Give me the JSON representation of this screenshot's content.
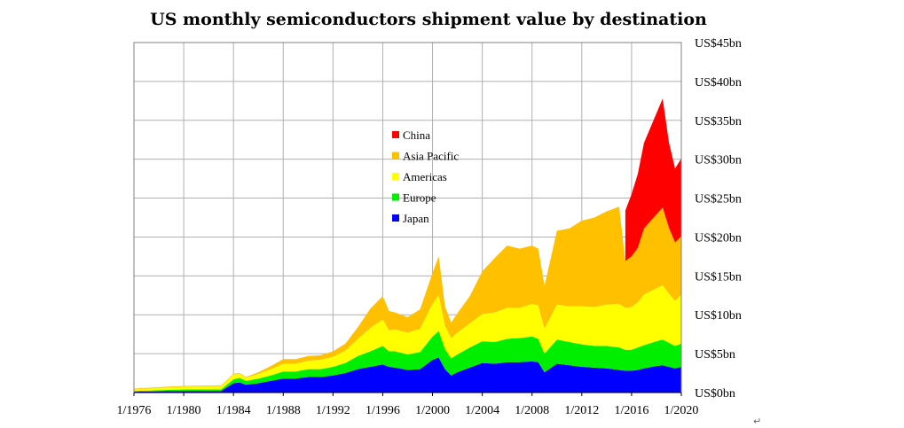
{
  "chart_data": {
    "type": "area",
    "stacked": true,
    "title": "US monthly semiconductors shipment value by destination",
    "xlabel": "",
    "ylabel": "",
    "x_range": [
      1976,
      2020
    ],
    "ylim": [
      0,
      45
    ],
    "x_ticks": [
      "1/1976",
      "1/1980",
      "1/1984",
      "1/1988",
      "1/1992",
      "1/1996",
      "1/2000",
      "1/2004",
      "1/2008",
      "1/2012",
      "1/2016",
      "1/2020"
    ],
    "y_ticks": [
      "US$0bn",
      "US$5bn",
      "US$10bn",
      "US$15bn",
      "US$20bn",
      "US$25bn",
      "US$30bn",
      "US$35bn",
      "US$40bn",
      "US$45bn"
    ],
    "y_tick_values": [
      0,
      5,
      10,
      15,
      20,
      25,
      30,
      35,
      40,
      45
    ],
    "x_tick_values": [
      1976,
      1980,
      1984,
      1988,
      1992,
      1996,
      2000,
      2004,
      2008,
      2012,
      2016,
      2020
    ],
    "grid": true,
    "legend_position": "center",
    "x": [
      1976,
      1978,
      1980,
      1982,
      1983,
      1984,
      1984.5,
      1985,
      1986,
      1987,
      1988,
      1989,
      1990,
      1991,
      1992,
      1993,
      1994,
      1995,
      1996,
      1996.5,
      1997,
      1998,
      1999,
      2000,
      2000.5,
      2001,
      2001.5,
      2002,
      2003,
      2004,
      2005,
      2006,
      2007,
      2008,
      2008.5,
      2009,
      2010,
      2011,
      2012,
      2013,
      2014,
      2015,
      2015.5,
      2016,
      2016.5,
      2017,
      2018,
      2018.5,
      2019,
      2019.5,
      2020
    ],
    "series": [
      {
        "name": "Japan",
        "color": "#0000ff",
        "values": [
          0.1,
          0.15,
          0.2,
          0.2,
          0.2,
          1.2,
          1.3,
          1.0,
          1.2,
          1.5,
          1.8,
          1.8,
          2.0,
          2.0,
          2.2,
          2.5,
          3.0,
          3.3,
          3.6,
          3.3,
          3.2,
          2.9,
          3.0,
          4.2,
          4.5,
          3.0,
          2.2,
          2.6,
          3.2,
          3.8,
          3.7,
          3.9,
          3.9,
          4.0,
          3.9,
          2.6,
          3.7,
          3.5,
          3.3,
          3.2,
          3.1,
          2.9,
          2.8,
          2.8,
          2.9,
          3.1,
          3.4,
          3.5,
          3.3,
          3.1,
          3.3
        ]
      },
      {
        "name": "Europe",
        "color": "#00ee00",
        "values": [
          0.1,
          0.15,
          0.2,
          0.2,
          0.2,
          0.5,
          0.6,
          0.5,
          0.6,
          0.7,
          0.9,
          0.9,
          1.0,
          1.0,
          1.1,
          1.3,
          1.7,
          2.0,
          2.4,
          2.0,
          2.1,
          2.0,
          2.2,
          3.0,
          3.4,
          2.6,
          2.2,
          2.3,
          2.6,
          2.8,
          2.8,
          3.0,
          3.1,
          3.2,
          3.0,
          2.4,
          3.1,
          3.0,
          2.9,
          2.8,
          2.9,
          2.9,
          2.7,
          2.7,
          2.9,
          3.0,
          3.2,
          3.3,
          3.1,
          2.9,
          3.0
        ]
      },
      {
        "name": "Americas",
        "color": "#ffff00",
        "values": [
          0.2,
          0.3,
          0.35,
          0.4,
          0.4,
          0.6,
          0.5,
          0.4,
          0.6,
          0.8,
          1.0,
          1.0,
          1.1,
          1.2,
          1.3,
          1.6,
          2.2,
          3.0,
          3.4,
          2.7,
          2.8,
          2.8,
          3.0,
          4.2,
          4.6,
          3.0,
          2.6,
          2.8,
          3.1,
          3.5,
          3.8,
          4.0,
          3.9,
          4.2,
          4.3,
          3.2,
          4.5,
          4.6,
          4.9,
          5.0,
          5.3,
          5.6,
          5.4,
          5.5,
          5.8,
          6.5,
          6.8,
          7.0,
          6.3,
          5.8,
          6.3
        ]
      },
      {
        "name": "Asia Pacific",
        "color": "#ffc000",
        "values": [
          0.1,
          0.1,
          0.1,
          0.1,
          0.1,
          0.1,
          0.1,
          0.1,
          0.2,
          0.4,
          0.6,
          0.6,
          0.6,
          0.6,
          0.7,
          0.9,
          1.5,
          2.5,
          3.0,
          2.5,
          2.2,
          2.0,
          2.5,
          4.0,
          5.0,
          2.5,
          2.0,
          2.5,
          3.5,
          5.5,
          7.0,
          8.0,
          7.6,
          7.5,
          7.3,
          5.5,
          9.5,
          10.0,
          11.0,
          11.5,
          12.0,
          12.5,
          6.0,
          6.5,
          7.0,
          8.5,
          9.5,
          10.0,
          8.5,
          7.5,
          7.5
        ]
      },
      {
        "name": "China",
        "color": "#ff0000",
        "values": [
          0,
          0,
          0,
          0,
          0,
          0,
          0,
          0,
          0,
          0,
          0,
          0,
          0,
          0,
          0,
          0,
          0,
          0,
          0,
          0,
          0,
          0,
          0,
          0,
          0,
          0,
          0,
          0,
          0,
          0,
          0,
          0,
          0,
          0,
          0,
          0,
          0,
          0,
          0,
          0,
          0,
          0,
          6.5,
          8.0,
          9.5,
          11.0,
          13.0,
          14.0,
          11.0,
          9.5,
          10.0
        ]
      }
    ],
    "legend_order": [
      "China",
      "Asia Pacific",
      "Americas",
      "Europe",
      "Japan"
    ]
  },
  "annotation_mark": "↵"
}
